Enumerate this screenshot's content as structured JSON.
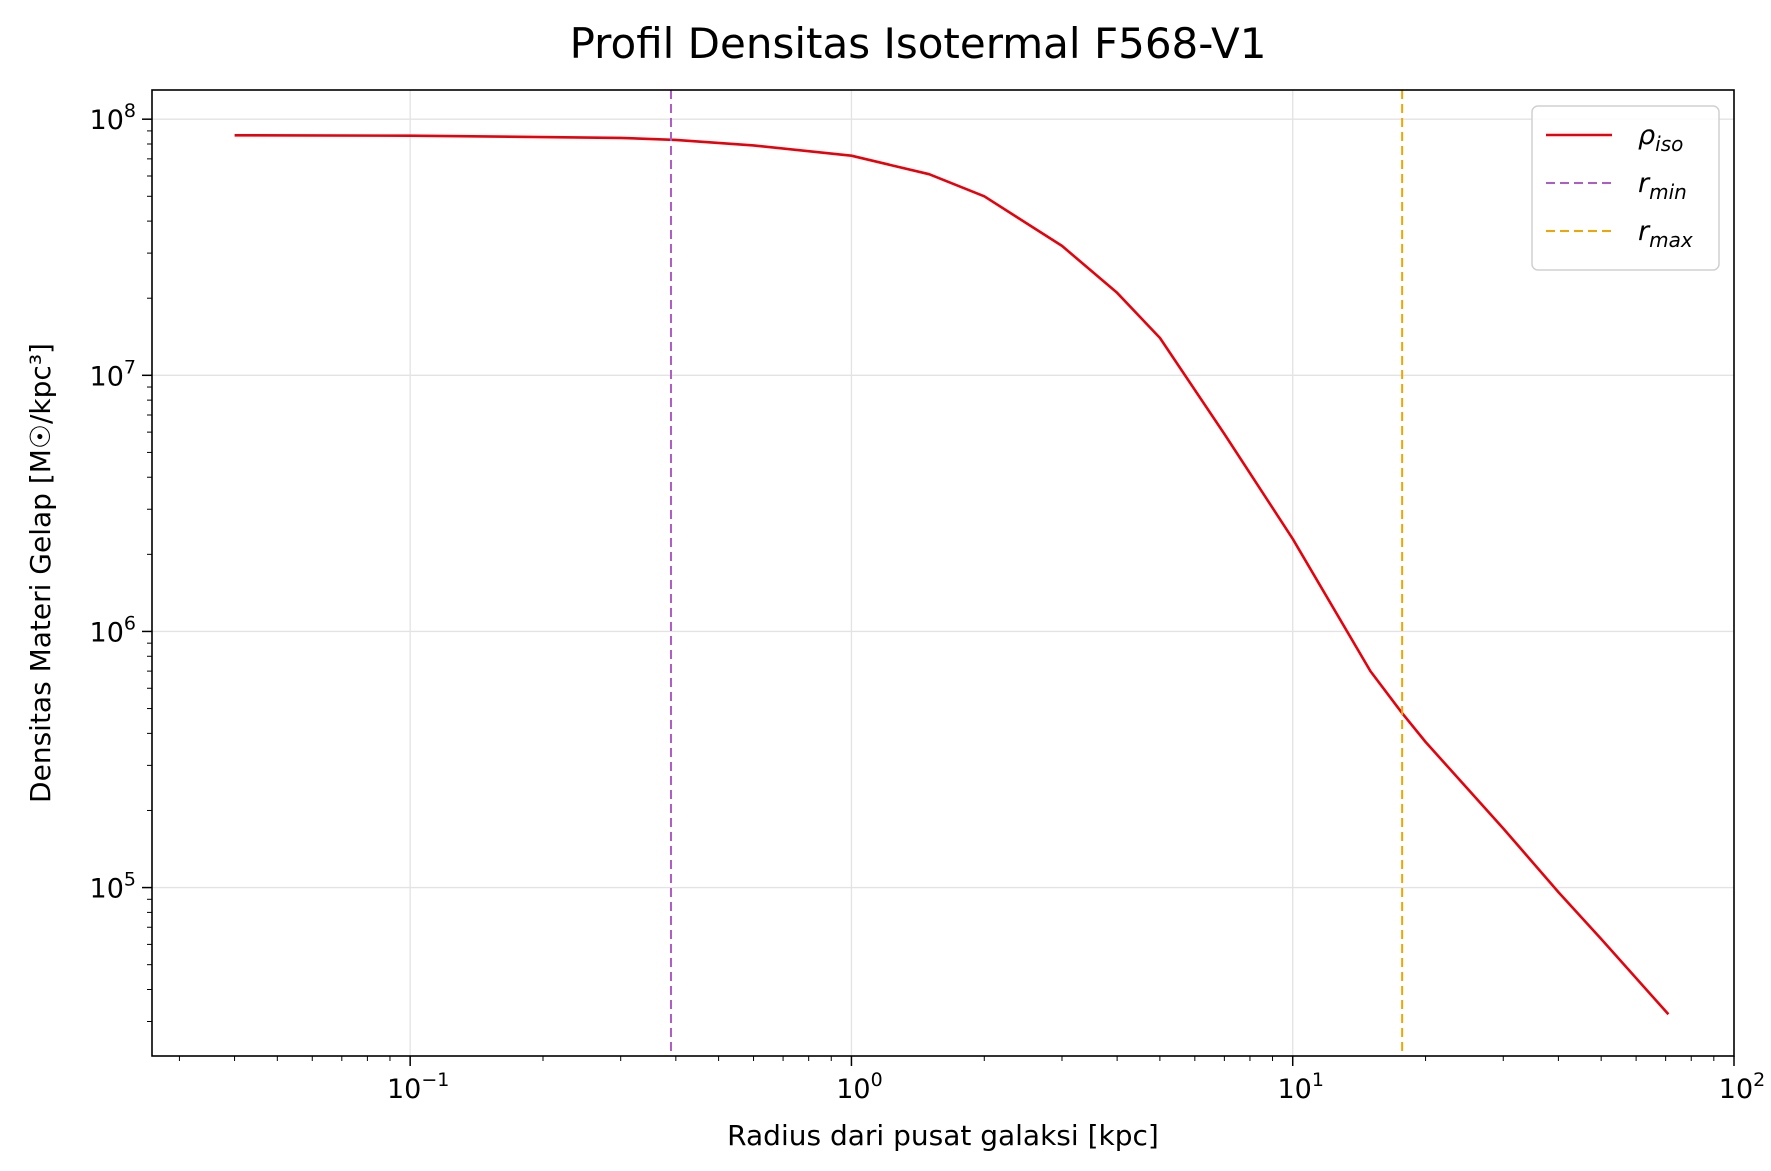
{
  "chart_data": {
    "type": "line",
    "title": "Profil Densitas Isotermal F568-V1",
    "xlabel": "Radius dari pusat galaksi [kpc]",
    "ylabel": "Densitas Materi Gelap [M☉/kpc³]",
    "xscale": "log",
    "yscale": "log",
    "xlim": [
      0.026,
      100
    ],
    "ylim": [
      22000,
      130000000
    ],
    "xticks": [
      {
        "value": 0.1,
        "base": "10",
        "exp": "−1"
      },
      {
        "value": 1,
        "base": "10",
        "exp": "0"
      },
      {
        "value": 10,
        "base": "10",
        "exp": "1"
      },
      {
        "value": 100,
        "base": "10",
        "exp": "2"
      }
    ],
    "yticks": [
      {
        "value": 100000,
        "base": "10",
        "exp": "5"
      },
      {
        "value": 1000000,
        "base": "10",
        "exp": "6"
      },
      {
        "value": 10000000,
        "base": "10",
        "exp": "7"
      },
      {
        "value": 100000000,
        "base": "10",
        "exp": "8"
      }
    ],
    "grid": true,
    "legend_position": "top-right",
    "series": [
      {
        "name": "ρ_iso",
        "label_main": "ρ",
        "label_sub": "iso",
        "color": "#e8000b",
        "style": "solid",
        "x": [
          0.04,
          0.1,
          0.3,
          0.4,
          0.6,
          1,
          1.5,
          2,
          3,
          4,
          5,
          7,
          10,
          15,
          17.7,
          20,
          30,
          40,
          50,
          71
        ],
        "y": [
          86500000,
          86200000,
          84500000,
          83000000,
          79000000,
          72000000,
          61000000,
          50000000,
          32000000,
          21000000,
          14000000,
          5900000,
          2300000,
          700000,
          480000,
          370000,
          170000,
          96000,
          63000,
          32000
        ]
      },
      {
        "name": "r_min",
        "label_main": "r",
        "label_sub": "min",
        "color": "#b05cc6",
        "style": "dashed",
        "vline": 0.39
      },
      {
        "name": "r_max",
        "label_main": "r",
        "label_sub": "max",
        "color": "#f0a500",
        "style": "dashed",
        "vline": 17.7
      }
    ]
  }
}
